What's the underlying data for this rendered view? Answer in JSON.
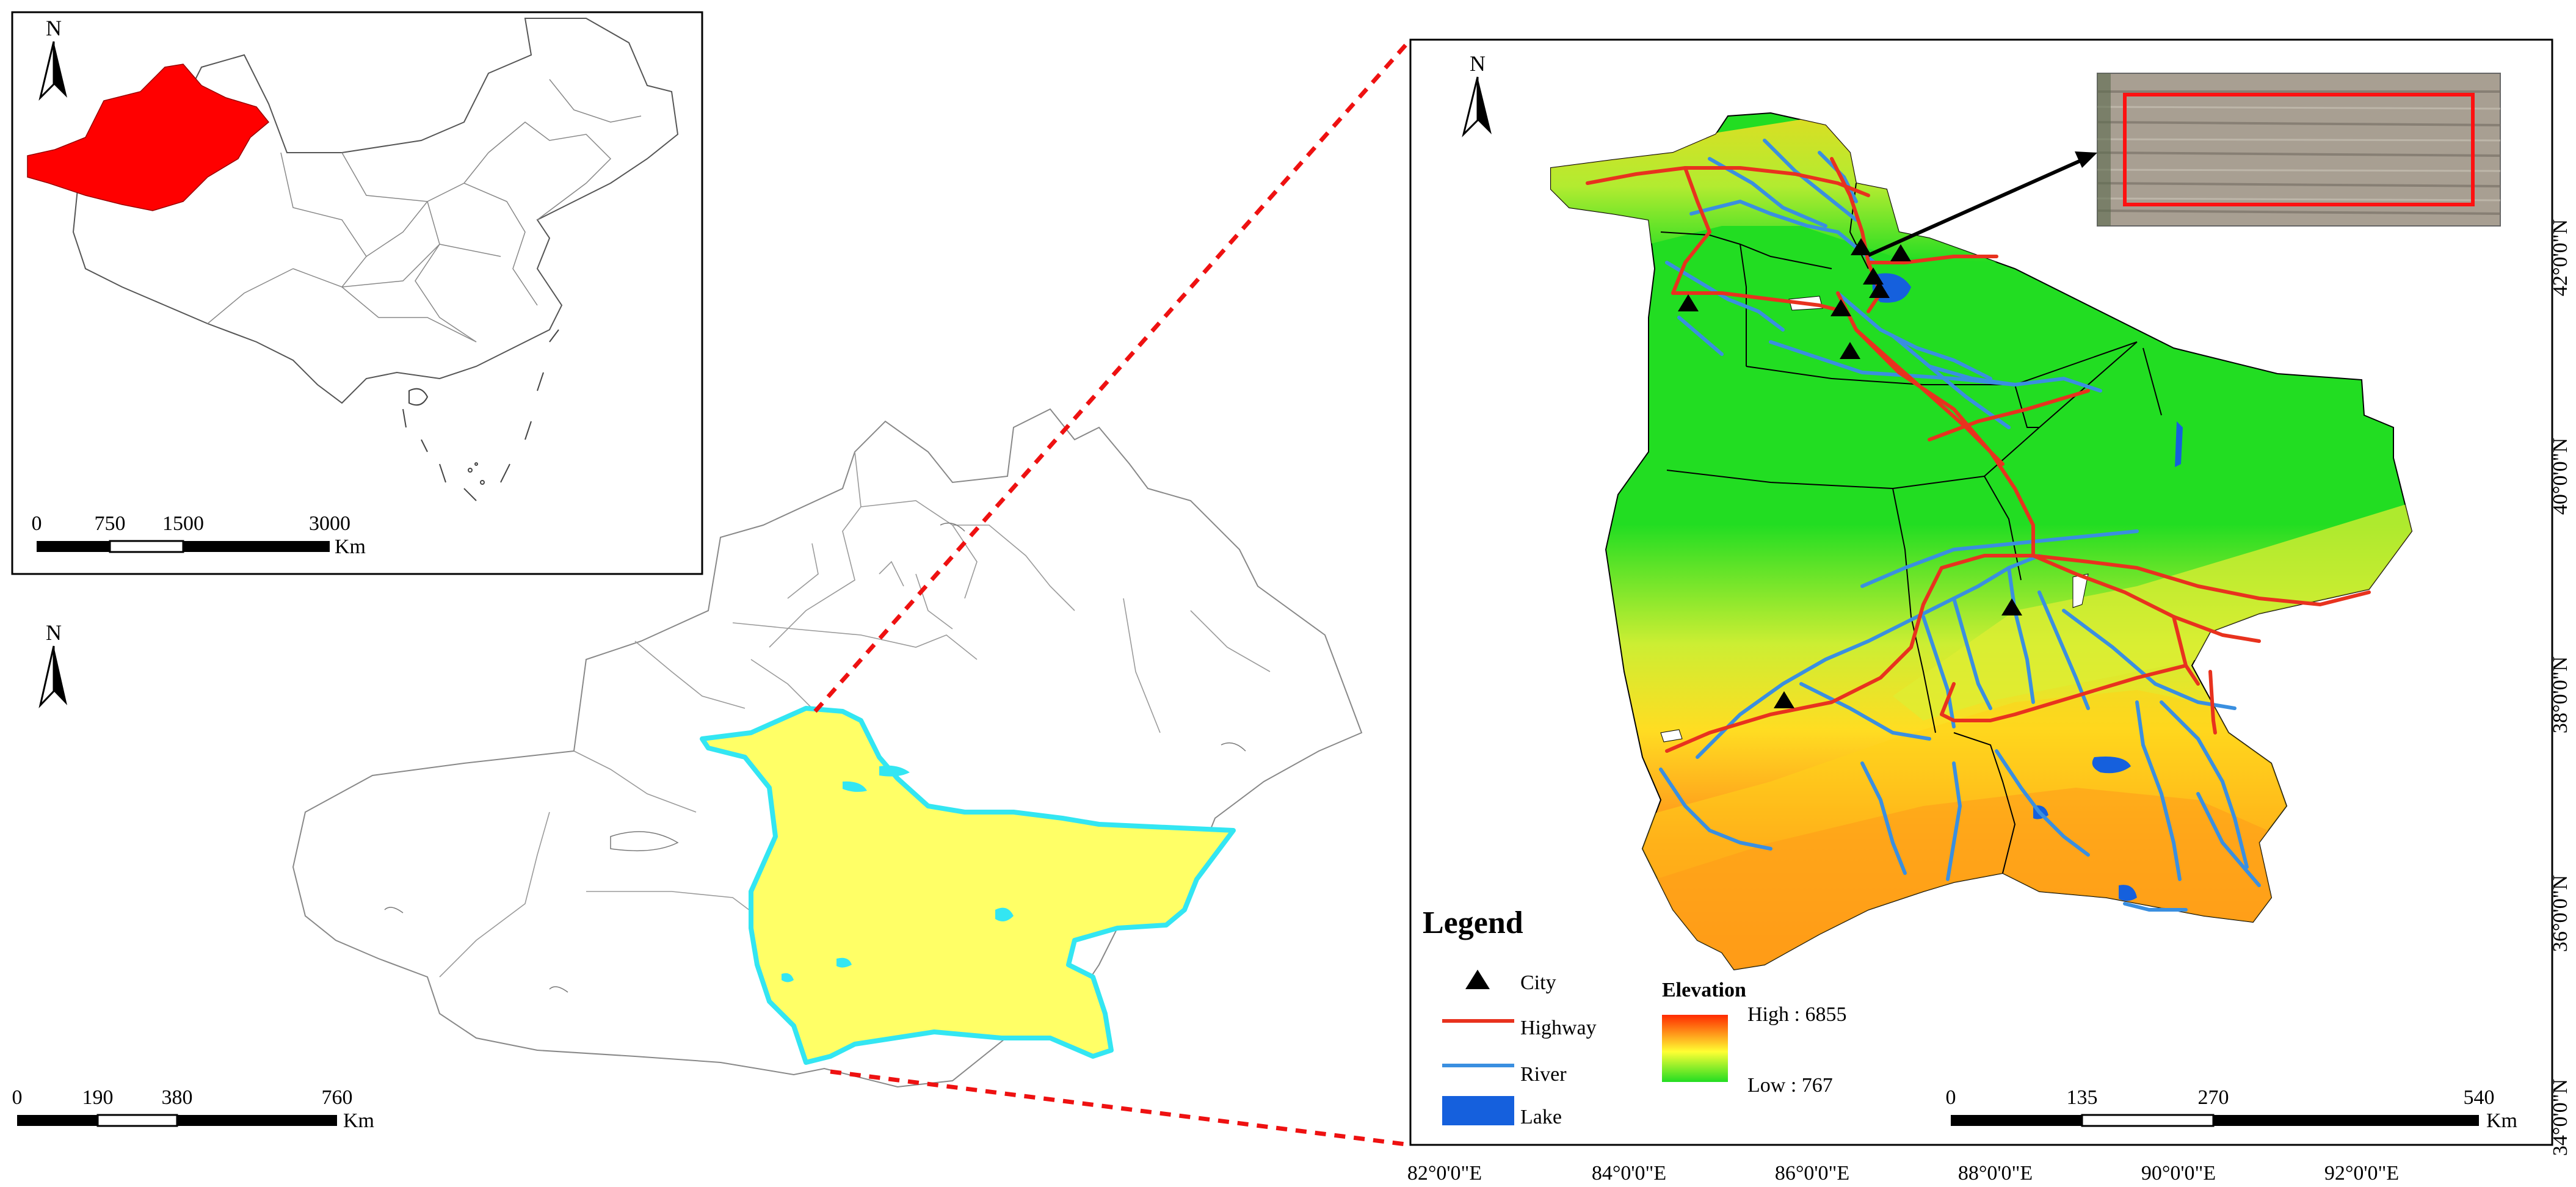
{
  "north_label": "N",
  "china_map": {
    "highlight_color": "#ff0000",
    "scale_ticks": [
      "0",
      "750",
      "1500",
      "3000"
    ],
    "scale_unit": "Km"
  },
  "xinjiang_map": {
    "study_area_fill": "#ffff66",
    "study_area_outline": "#33e6f2",
    "scale_ticks": [
      "0",
      "190",
      "380",
      "760"
    ],
    "scale_unit": "Km"
  },
  "study_area_map": {
    "scale_ticks": [
      "0",
      "135",
      "270",
      "540"
    ],
    "scale_unit": "Km",
    "longitude_labels": [
      "82°0'0\"E",
      "84°0'0\"E",
      "86°0'0\"E",
      "88°0'0\"E",
      "90°0'0\"E",
      "92°0'0\"E"
    ],
    "latitude_labels": [
      "42°0'0\"N",
      "40°0'0\"N",
      "38°0'0\"N",
      "36°0'0\"N",
      "34°0'0\"N"
    ]
  },
  "legend": {
    "title": "Legend",
    "items": [
      {
        "label": "City",
        "symbol": "triangle",
        "color": "#000000"
      },
      {
        "label": "Highway",
        "symbol": "line",
        "color": "#e8321e"
      },
      {
        "label": "River",
        "symbol": "line",
        "color": "#3a8fe0"
      },
      {
        "label": "Lake",
        "symbol": "box",
        "color": "#1560dd"
      }
    ],
    "elevation_title": "Elevation",
    "elevation_high": "High : 6855",
    "elevation_low": "Low : 767"
  },
  "colors": {
    "lowland": "#22dd22",
    "highland": "#ff8c1a",
    "highway": "#e8321e",
    "river": "#3a8fe0",
    "lake": "#1560dd",
    "connector": "#ee1111"
  }
}
